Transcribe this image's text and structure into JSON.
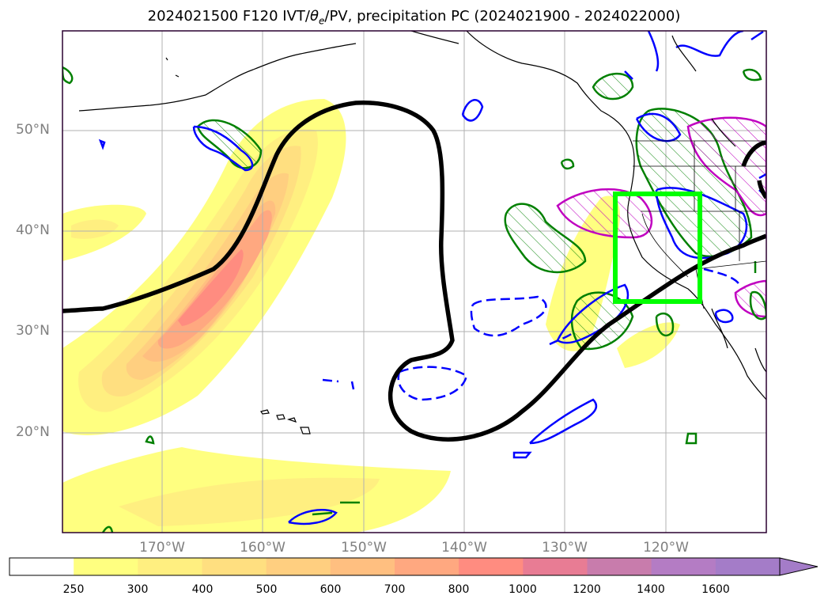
{
  "title": "2024021500 F120 IVT/θe/PV, precipitation PC (2024021900 - 2024022000)",
  "map": {
    "lat_ticks": [
      "50°N",
      "40°N",
      "30°N",
      "20°N"
    ],
    "lon_ticks": [
      "170°W",
      "160°W",
      "150°W",
      "140°W",
      "130°W",
      "120°W"
    ],
    "extent": {
      "lon": [
        -180,
        -110
      ],
      "lat": [
        10,
        60
      ]
    },
    "box": {
      "lon": [
        -125,
        -116.5
      ],
      "lat": [
        33,
        43.5
      ],
      "color": "#00ff00"
    },
    "colors": {
      "pv_contour": "#000000",
      "green": "#008000",
      "blue": "#0000ff",
      "magenta": "#c000c0",
      "coast": "#000000"
    }
  },
  "colorbar": {
    "levels": [
      "250",
      "300",
      "400",
      "500",
      "600",
      "700",
      "800",
      "1000",
      "1200",
      "1400",
      "1600"
    ],
    "colors": [
      "#ffffff",
      "#ffff80",
      "#ffef80",
      "#ffdf80",
      "#ffcf80",
      "#ffbf80",
      "#ffa880",
      "#ff8c80",
      "#e87c94",
      "#c87cac",
      "#b47cc4",
      "#a47cc8"
    ]
  }
}
